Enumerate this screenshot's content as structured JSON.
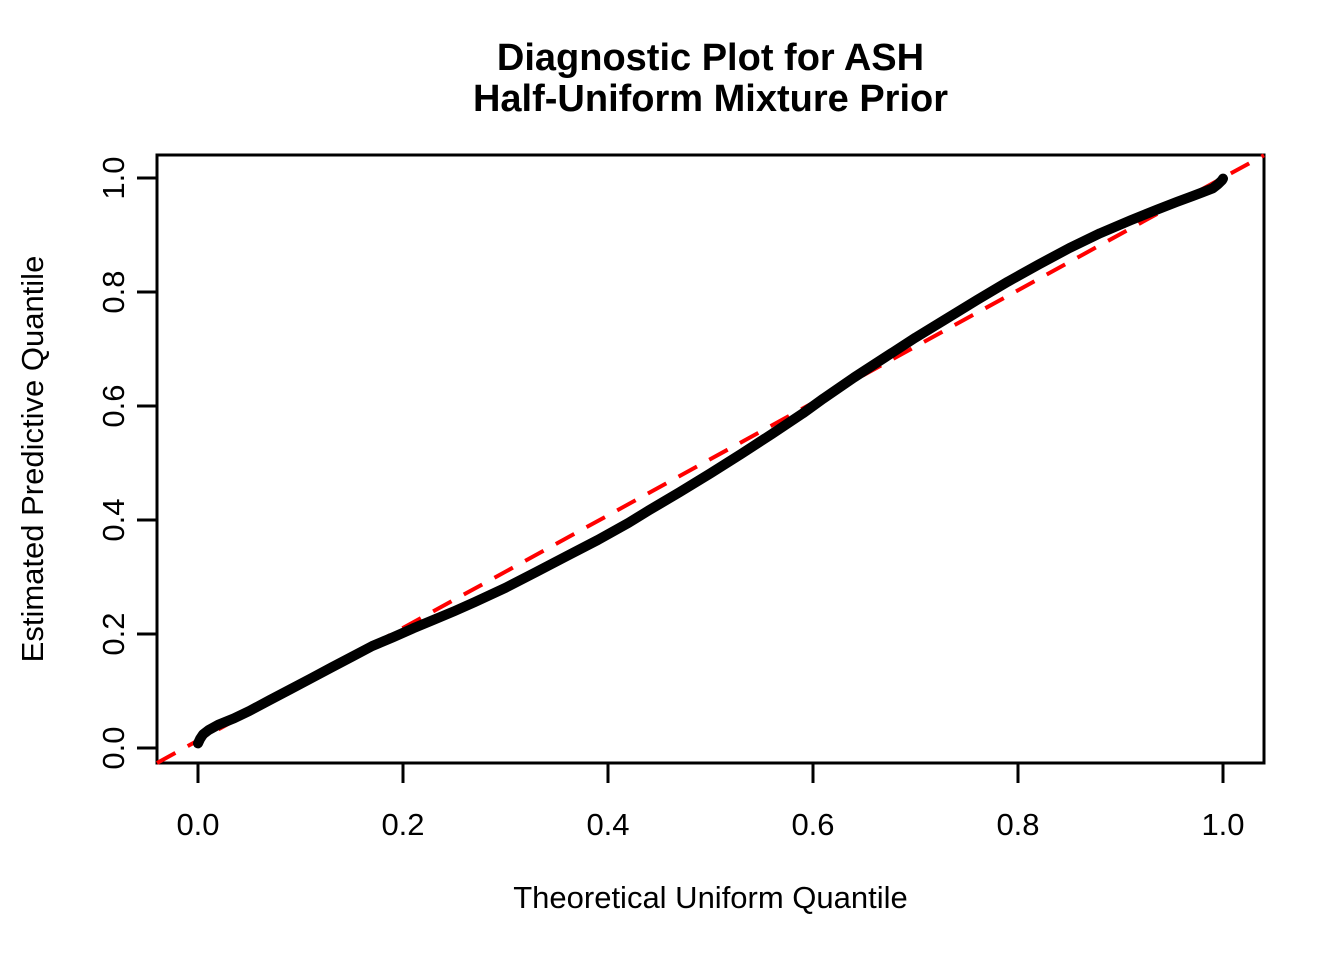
{
  "figure": {
    "title_line1": "Diagnostic Plot for ASH",
    "title_line2": "Half-Uniform Mixture Prior",
    "xlabel": "Theoretical Uniform Quantile",
    "ylabel": "Estimated Predictive Quantile"
  },
  "chart_data": {
    "type": "line",
    "title": "Diagnostic Plot for ASH\nHalf-Uniform Mixture Prior",
    "xlabel": "Theoretical Uniform Quantile",
    "ylabel": "Estimated Predictive Quantile",
    "xlim": [
      -0.04,
      1.04
    ],
    "ylim": [
      -0.04,
      1.04
    ],
    "grid": false,
    "legend": "none",
    "x_ticks": [
      0.0,
      0.2,
      0.4,
      0.6,
      0.8,
      1.0
    ],
    "y_ticks": [
      0.0,
      0.2,
      0.4,
      0.6,
      0.8,
      1.0
    ],
    "x_tick_labels": [
      "0.0",
      "0.2",
      "0.4",
      "0.6",
      "0.8",
      "1.0"
    ],
    "y_tick_labels": [
      "0.0",
      "0.2",
      "0.4",
      "0.6",
      "0.8",
      "1.0"
    ],
    "colors": {
      "curve": "#000000",
      "reference": "#FF0000",
      "axis": "#000000",
      "background": "#FFFFFF"
    },
    "series": [
      {
        "name": "qq-curve",
        "label": "Estimated vs theoretical quantiles",
        "type": "line",
        "color": "#000000",
        "stroke_width": 10,
        "dashed": false,
        "points": [
          [
            0.0,
            0.008
          ],
          [
            0.002,
            0.016
          ],
          [
            0.005,
            0.024
          ],
          [
            0.01,
            0.031
          ],
          [
            0.02,
            0.041
          ],
          [
            0.035,
            0.052
          ],
          [
            0.05,
            0.065
          ],
          [
            0.07,
            0.084
          ],
          [
            0.09,
            0.103
          ],
          [
            0.11,
            0.122
          ],
          [
            0.13,
            0.141
          ],
          [
            0.15,
            0.16
          ],
          [
            0.17,
            0.179
          ],
          [
            0.19,
            0.194
          ],
          [
            0.21,
            0.21
          ],
          [
            0.23,
            0.225
          ],
          [
            0.25,
            0.24
          ],
          [
            0.27,
            0.256
          ],
          [
            0.3,
            0.281
          ],
          [
            0.33,
            0.309
          ],
          [
            0.36,
            0.337
          ],
          [
            0.39,
            0.365
          ],
          [
            0.42,
            0.395
          ],
          [
            0.44,
            0.417
          ],
          [
            0.47,
            0.449
          ],
          [
            0.5,
            0.482
          ],
          [
            0.53,
            0.516
          ],
          [
            0.56,
            0.551
          ],
          [
            0.59,
            0.587
          ],
          [
            0.61,
            0.613
          ],
          [
            0.64,
            0.65
          ],
          [
            0.67,
            0.685
          ],
          [
            0.7,
            0.72
          ],
          [
            0.73,
            0.753
          ],
          [
            0.76,
            0.786
          ],
          [
            0.79,
            0.818
          ],
          [
            0.82,
            0.848
          ],
          [
            0.85,
            0.877
          ],
          [
            0.88,
            0.903
          ],
          [
            0.91,
            0.926
          ],
          [
            0.935,
            0.944
          ],
          [
            0.955,
            0.958
          ],
          [
            0.97,
            0.968
          ],
          [
            0.98,
            0.975
          ],
          [
            0.99,
            0.982
          ],
          [
            0.995,
            0.989
          ],
          [
            0.999,
            0.996
          ],
          [
            1.0,
            0.999
          ]
        ]
      },
      {
        "name": "reference-line",
        "label": "y = x reference",
        "type": "line",
        "color": "#FF0000",
        "stroke_width": 4,
        "dashed": true,
        "points": [
          [
            -0.04,
            -0.04
          ],
          [
            1.04,
            1.04
          ]
        ]
      }
    ]
  }
}
